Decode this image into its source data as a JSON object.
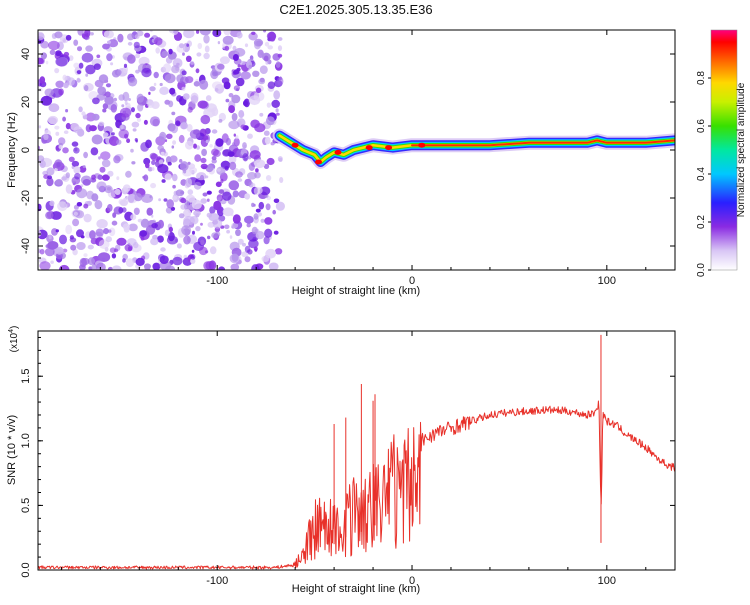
{
  "title": "C2E1.2025.305.13.35.E36",
  "chart_data": [
    {
      "type": "heatmap",
      "title": "C2E1.2025.305.13.35.E36",
      "xlabel": "Height of straight line (km)",
      "ylabel": "Frequency (Hz)",
      "xlim": [
        -192,
        135
      ],
      "ylim": [
        -50,
        50
      ],
      "xticks": [
        -100,
        0,
        100
      ],
      "yticks": [
        -40,
        -20,
        0,
        20,
        40
      ],
      "xtick_labels": [
        "-100",
        "0",
        "100"
      ],
      "ytick_labels": [
        "-40",
        "-20",
        "0",
        "20",
        "40"
      ],
      "noise_region_x": [
        -192,
        -67
      ],
      "ridge": {
        "x": [
          -68,
          -62,
          -56,
          -50,
          -47,
          -44,
          -40,
          -35,
          -30,
          -25,
          -20,
          -10,
          0,
          10,
          20,
          40,
          60,
          80,
          90,
          95,
          100,
          120,
          135
        ],
        "y": [
          6,
          3,
          0,
          -2,
          -5,
          -3,
          -1,
          -2,
          0,
          1,
          2,
          1,
          2,
          2,
          2,
          2,
          3,
          3,
          3,
          4,
          3,
          3,
          4
        ]
      },
      "colorbar": {
        "label": "Normalized spectral amplitude",
        "range": [
          0.0,
          1.0
        ],
        "ticks": [
          0.0,
          0.2,
          0.4,
          0.6,
          0.8
        ],
        "tick_labels": [
          "0.0",
          "0.2",
          "0.4",
          "0.6",
          "0.8"
        ]
      }
    },
    {
      "type": "line",
      "xlabel": "Height of straight line (km)",
      "ylabel": "SNR (10 * v/v)",
      "multiplier": "(x10",
      "multiplier_exp": "4",
      "xlim": [
        -192,
        135
      ],
      "ylim": [
        0.0,
        1.85
      ],
      "xticks": [
        -100,
        0,
        100
      ],
      "yticks": [
        0.0,
        0.5,
        1.0,
        1.5
      ],
      "xtick_labels": [
        "-100",
        "0",
        "100"
      ],
      "ytick_labels": [
        "0.0",
        "0.5",
        "1.0",
        "1.5"
      ],
      "color": "#e8312a",
      "series": [
        {
          "name": "SNR",
          "x": [
            -192,
            -150,
            -100,
            -70,
            -60,
            -55,
            -50,
            -45,
            -40,
            -35,
            -30,
            -25,
            -20,
            -15,
            -10,
            -5,
            0,
            5,
            10,
            20,
            30,
            40,
            50,
            60,
            70,
            80,
            90,
            94,
            96,
            97,
            98,
            100,
            105,
            110,
            115,
            120,
            125,
            130,
            135
          ],
          "y": [
            0.02,
            0.02,
            0.02,
            0.02,
            0.04,
            0.2,
            0.4,
            0.45,
            0.4,
            0.5,
            0.55,
            0.6,
            0.7,
            0.65,
            0.85,
            0.8,
            0.9,
            1.0,
            1.05,
            1.1,
            1.15,
            1.2,
            1.22,
            1.23,
            1.24,
            1.23,
            1.2,
            1.22,
            1.3,
            0.42,
            1.22,
            1.15,
            1.12,
            1.05,
            1.0,
            0.95,
            0.88,
            0.82,
            0.79
          ]
        }
      ],
      "spikes": [
        {
          "x": -40,
          "y": 1.13
        },
        {
          "x": -34,
          "y": 1.18
        },
        {
          "x": -26,
          "y": 1.44
        },
        {
          "x": -20,
          "y": 1.31
        },
        {
          "x": -19,
          "y": 1.36
        },
        {
          "x": 97,
          "y": 1.82
        }
      ]
    }
  ]
}
